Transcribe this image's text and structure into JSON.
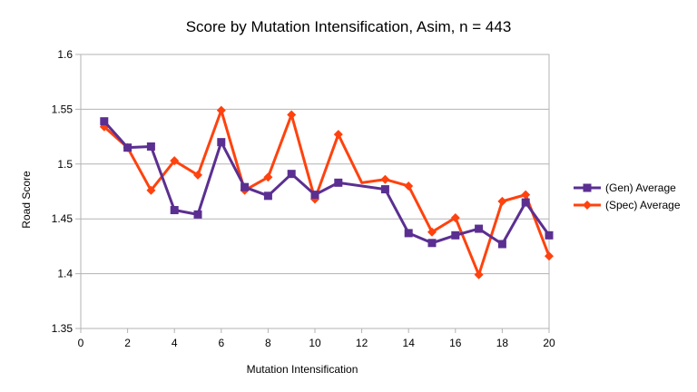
{
  "chart_data": {
    "type": "line",
    "title": "Score by Mutation Intensification, Asim, n = 443",
    "xlabel": "Mutation Intensification",
    "ylabel": "Road Score",
    "xlim": [
      0,
      20
    ],
    "ylim": [
      1.35,
      1.6
    ],
    "x_ticks": [
      "0",
      "2",
      "4",
      "6",
      "8",
      "10",
      "12",
      "14",
      "16",
      "18",
      "20"
    ],
    "y_ticks": [
      "1.35",
      "1.4",
      "1.45",
      "1.5",
      "1.55",
      "1.6"
    ],
    "grid": "horizontal",
    "legend_position": "right",
    "x": [
      1,
      2,
      3,
      4,
      5,
      6,
      7,
      8,
      9,
      10,
      11,
      13,
      14,
      15,
      16,
      17,
      18,
      19,
      20
    ],
    "series": [
      {
        "name": "(Gen) Average",
        "color": "#5b2f91",
        "marker": "square",
        "values": [
          1.539,
          1.515,
          1.516,
          1.458,
          1.454,
          1.52,
          1.479,
          1.471,
          1.491,
          1.472,
          1.483,
          1.477,
          1.437,
          1.428,
          1.435,
          1.441,
          1.427,
          1.465,
          1.435
        ]
      },
      {
        "name": "(Spec) Average",
        "color": "#ff420e",
        "marker": "diamond",
        "values": [
          1.534,
          1.515,
          1.476,
          1.503,
          1.49,
          1.549,
          1.476,
          1.488,
          1.545,
          1.468,
          1.527,
          1.486,
          1.48,
          1.438,
          1.451,
          1.399,
          1.466,
          1.472,
          1.416
        ]
      }
    ],
    "extra_points": {
      "(Spec) Average": {
        "x": 12,
        "y": 1.483
      }
    }
  }
}
